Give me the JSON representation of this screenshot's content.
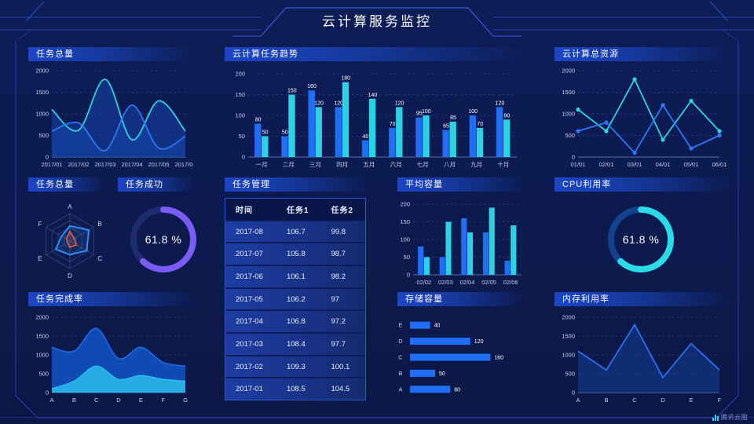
{
  "header": {
    "title": "云计算服务监控"
  },
  "footer": {
    "logo_text": "腾讯云图"
  },
  "colors": {
    "background": "#0c1a4e",
    "panel_title": "#1c45c6",
    "frame_line": "#2c44c2",
    "series_blue": "#1f6ef5",
    "series_cyan": "#2bd1e4",
    "gauge_purple": "#7a5af8",
    "gauge_cyan": "#29dbe8"
  },
  "chart_data": [
    {
      "key": "tasks_total",
      "type": "area",
      "title": "任务总量",
      "smooth": true,
      "x": [
        "2017/01",
        "2017/02",
        "2017/03",
        "2017/04",
        "2017/05",
        "2017/06"
      ],
      "ylim": [
        0,
        2000
      ],
      "yticks": [
        0,
        500,
        1000,
        1500,
        2000
      ],
      "grid": true,
      "series": [
        {
          "name": "cyan",
          "color": "#2ad5e2",
          "fill": "rgba(21,70,175,0.50)",
          "values": [
            1100,
            620,
            1800,
            400,
            1300,
            600
          ]
        },
        {
          "name": "blue",
          "color": "#2b78f2",
          "fill": "rgba(21,70,175,0.50)",
          "values": [
            600,
            790,
            150,
            1200,
            210,
            480
          ]
        }
      ]
    },
    {
      "key": "task_trend",
      "type": "bar",
      "title": "云计算任务趋势",
      "categories": [
        "一月",
        "二月",
        "三月",
        "四月",
        "五月",
        "六月",
        "七月",
        "八月",
        "九月",
        "十月"
      ],
      "ylim": [
        0,
        200
      ],
      "yticks": [
        0,
        50,
        100,
        150,
        200
      ],
      "show_values": true,
      "grid": true,
      "series": [
        {
          "name": "blue",
          "color": "#1f6ef5",
          "values": [
            80,
            50,
            160,
            120,
            40,
            70,
            95,
            65,
            100,
            120
          ]
        },
        {
          "name": "cyan",
          "color": "#2bd1e4",
          "values": [
            50,
            150,
            120,
            180,
            140,
            120,
            100,
            85,
            70,
            90
          ]
        }
      ]
    },
    {
      "key": "total_resources",
      "type": "line",
      "title": "云计算总资源",
      "smooth": false,
      "markers": true,
      "x": [
        "01/01",
        "02/01",
        "03/01",
        "04/01",
        "05/01",
        "06/01"
      ],
      "ylim": [
        0,
        2000
      ],
      "yticks": [
        0,
        500,
        1000,
        1500,
        2000
      ],
      "grid": true,
      "series": [
        {
          "name": "cyan",
          "color": "#2ad5e2",
          "values": [
            1100,
            600,
            1800,
            400,
            1300,
            600
          ]
        },
        {
          "name": "blue",
          "color": "#2b78f2",
          "values": [
            600,
            800,
            100,
            1200,
            200,
            500
          ]
        }
      ]
    },
    {
      "key": "tasks_radar",
      "type": "radar",
      "title": "任务总量",
      "axes": [
        "A",
        "B",
        "C",
        "D",
        "E",
        "F"
      ],
      "max": 100,
      "series": [
        {
          "name": "blue",
          "color": "#2f8cf2",
          "fill": "rgba(47,140,242,0.15)",
          "values": [
            55,
            80,
            70,
            50,
            60,
            35
          ]
        },
        {
          "name": "red",
          "color": "#f05a40",
          "fill": "rgba(240,90,64,0.18)",
          "values": [
            35,
            18,
            28,
            22,
            10,
            15
          ]
        }
      ]
    },
    {
      "key": "task_success",
      "type": "gauge",
      "title": "任务成功",
      "value": 61.8,
      "value_label": "61.8 %",
      "color": "#7a5af8",
      "track": "#1c2c6e"
    },
    {
      "key": "task_table",
      "type": "table",
      "title": "任务管理",
      "headers": [
        "时间",
        "任务1",
        "任务2"
      ],
      "rows": [
        [
          "2017-08",
          "106.7",
          "99.8"
        ],
        [
          "2017-07",
          "105.8",
          "98.7"
        ],
        [
          "2017-06",
          "106.1",
          "98.2"
        ],
        [
          "2017-05",
          "106.2",
          "97"
        ],
        [
          "2017-04",
          "106.8",
          "97.2"
        ],
        [
          "2017-03",
          "108.4",
          "97.7"
        ],
        [
          "2017-02",
          "109.3",
          "100.1"
        ],
        [
          "2017-01",
          "108.5",
          "104.5"
        ]
      ]
    },
    {
      "key": "avg_capacity",
      "type": "bar",
      "title": "平均容量",
      "categories": [
        "02/02",
        "02/03",
        "02/04",
        "02/05",
        "02/06"
      ],
      "ylim": [
        0,
        200
      ],
      "yticks": [
        0,
        50,
        100,
        150,
        200
      ],
      "show_values": false,
      "grid": true,
      "series": [
        {
          "name": "blue",
          "color": "#1f6ef5",
          "values": [
            80,
            50,
            160,
            120,
            40
          ]
        },
        {
          "name": "cyan",
          "color": "#2bd1e4",
          "values": [
            50,
            150,
            120,
            190,
            140
          ]
        }
      ]
    },
    {
      "key": "cpu_usage",
      "type": "gauge",
      "title": "CPU利用率",
      "value": 61.8,
      "value_label": "61.8 %",
      "color": "#29dbe8",
      "track": "#15428e"
    },
    {
      "key": "completion_rate",
      "type": "area",
      "title": "任务完成率",
      "smooth": true,
      "x": [
        "A",
        "B",
        "C",
        "D",
        "E",
        "F",
        "G"
      ],
      "ylim": [
        0,
        2000
      ],
      "yticks": [
        0,
        500,
        1000,
        1500,
        2000
      ],
      "grid": true,
      "series": [
        {
          "name": "blue",
          "color": "#1e66e0",
          "fill": "rgba(18,84,200,0.85)",
          "values": [
            1200,
            1100,
            1700,
            900,
            1200,
            800,
            700
          ]
        },
        {
          "name": "cyan",
          "color": "#29b6ea",
          "fill": "rgba(41,182,234,0.90)",
          "values": [
            100,
            300,
            700,
            350,
            450,
            350,
            300
          ]
        }
      ]
    },
    {
      "key": "storage",
      "type": "hbar",
      "title": "存储容量",
      "categories": [
        "E",
        "D",
        "C",
        "B",
        "A"
      ],
      "values": [
        40,
        120,
        160,
        50,
        80
      ],
      "xmax": 175,
      "color": "#1f6ef5"
    },
    {
      "key": "memory_usage",
      "type": "line",
      "title": "内存利用率",
      "smooth": false,
      "markers": false,
      "x": [
        "A",
        "B",
        "C",
        "D",
        "E",
        "F"
      ],
      "ylim": [
        0,
        2000
      ],
      "yticks": [
        0,
        500,
        1000,
        1500,
        2000
      ],
      "grid": true,
      "series": [
        {
          "name": "blue",
          "color": "#2b6ff0",
          "fill": "rgba(22,62,150,0.55)",
          "values": [
            1100,
            600,
            1800,
            400,
            1300,
            600
          ]
        }
      ]
    }
  ]
}
